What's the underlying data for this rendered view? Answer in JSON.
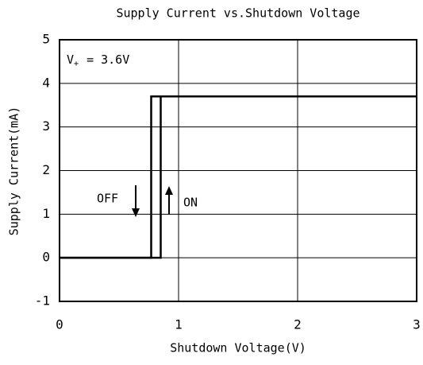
{
  "chart_data": {
    "type": "line",
    "title": "Supply Current vs.Shutdown Voltage",
    "x_label": "Shutdown Voltage(V)",
    "y_label": "Supply Current(mA)",
    "annotation": {
      "symbol": "V",
      "subscript": "+",
      "text": "= 3.6V"
    },
    "series": [
      {
        "name": "OFF",
        "color": "#000000",
        "x": [
          3,
          0.77,
          0.77,
          0
        ],
        "values": [
          3.7,
          3.7,
          0,
          0
        ]
      },
      {
        "name": "ON",
        "color": "#000000",
        "x": [
          0,
          0.85,
          0.85,
          3
        ],
        "values": [
          0,
          0,
          3.7,
          3.7
        ]
      }
    ],
    "xlim": [
      0,
      3
    ],
    "xticks": [
      0,
      1,
      2,
      3
    ],
    "ylim": [
      -1,
      5
    ],
    "yticks": [
      -1,
      0,
      1,
      2,
      3,
      4,
      5
    ],
    "grid": true
  }
}
